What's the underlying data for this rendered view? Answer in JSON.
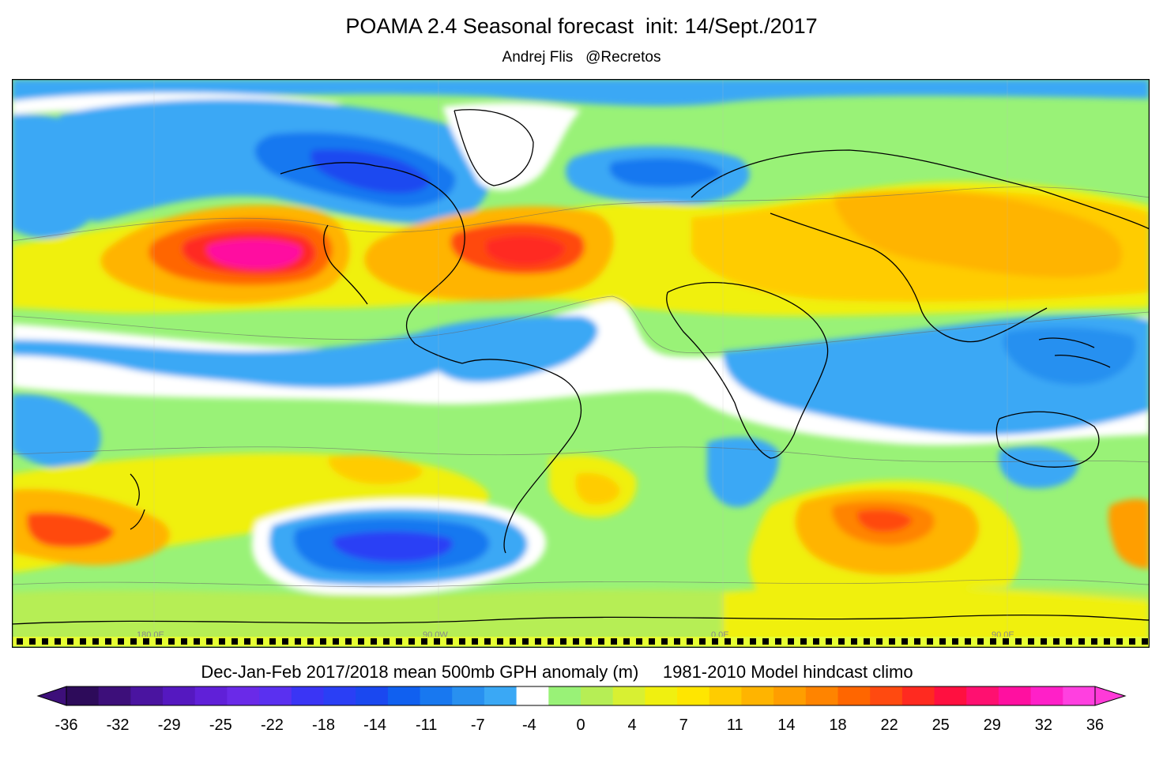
{
  "header": {
    "title": "POAMA 2.4 Seasonal forecast  init: 14/Sept./2017",
    "subtitle": "Andrej Flis   @Recretos"
  },
  "map": {
    "longitude_labels": [
      "180.0E",
      "90.0W",
      "0.0E",
      "90.0E"
    ],
    "field": "500mb geopotential height anomaly",
    "colors": {
      "frame": "#000000",
      "bottom_ruler_light": "#e6ff33",
      "bottom_ruler_dark": "#000000"
    }
  },
  "caption": "Dec-Jan-Feb 2017/2018 mean 500mb GPH anomaly (m)     1981-2010 Model hindcast climo",
  "colorbar": {
    "tick_labels": [
      "-36",
      "-32",
      "-29",
      "-25",
      "-22",
      "-18",
      "-14",
      "-11",
      "-7",
      "-4",
      "0",
      "4",
      "7",
      "11",
      "14",
      "18",
      "22",
      "25",
      "29",
      "32",
      "36"
    ],
    "colors": [
      "#2d0b5a",
      "#3d0f7a",
      "#4a14a0",
      "#5518c0",
      "#6020d8",
      "#6a2ae8",
      "#5a30f0",
      "#3a35f5",
      "#2a3ff5",
      "#1a48f0",
      "#1060f0",
      "#1878f0",
      "#2890f0",
      "#3aa8f5",
      "#ffffff",
      "#99f277",
      "#b6ee55",
      "#d8f032",
      "#f0f010",
      "#ffe600",
      "#ffcc00",
      "#ffb400",
      "#ff9e00",
      "#ff8400",
      "#ff6600",
      "#ff4a10",
      "#ff2a20",
      "#ff1040",
      "#ff1070",
      "#ff10a0",
      "#ff20c8",
      "#ff40e0"
    ],
    "left_arrow_color": "#3d0f7a",
    "right_arrow_color": "#ff3ad8"
  }
}
